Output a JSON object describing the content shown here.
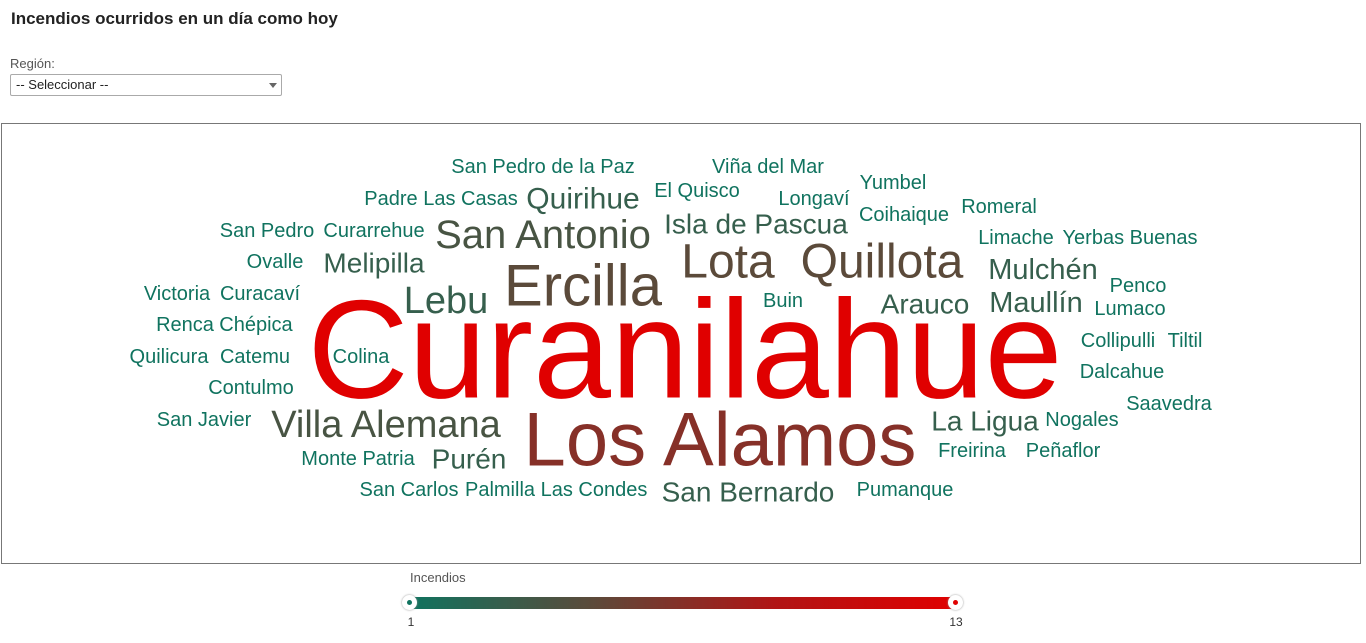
{
  "page": {
    "title": "Incendios ocurridos en un día como hoy",
    "region_label": "Región:",
    "region_select": "-- Seleccionar --"
  },
  "legend": {
    "title": "Incendios",
    "min_label": "1",
    "max_label": "13",
    "colors": [
      "#10735f",
      "#5b4a3a",
      "#b01515",
      "#e00000"
    ]
  },
  "chart_data": {
    "type": "wordcloud",
    "value_range": [
      1,
      13
    ],
    "words": [
      {
        "text": "Curanilahue",
        "value": 13
      },
      {
        "text": "Los Alamos",
        "value": 7
      },
      {
        "text": "Ercilla",
        "value": 5
      },
      {
        "text": "Lota",
        "value": 5
      },
      {
        "text": "Quillota",
        "value": 5
      },
      {
        "text": "San Antonio",
        "value": 4
      },
      {
        "text": "Villa Alemana",
        "value": 4
      },
      {
        "text": "Lebu",
        "value": 3
      },
      {
        "text": "San Bernardo",
        "value": 3
      },
      {
        "text": "Quirihue",
        "value": 3
      },
      {
        "text": "Isla de Pascua",
        "value": 3
      },
      {
        "text": "Melipilla",
        "value": 3
      },
      {
        "text": "Mulchén",
        "value": 3
      },
      {
        "text": "Maullín",
        "value": 3
      },
      {
        "text": "Arauco",
        "value": 3
      },
      {
        "text": "La Ligua",
        "value": 3
      },
      {
        "text": "Purén",
        "value": 3
      },
      {
        "text": "San Pedro de la Paz",
        "value": 1
      },
      {
        "text": "Viña del Mar",
        "value": 1
      },
      {
        "text": "Padre Las Casas",
        "value": 1
      },
      {
        "text": "El Quisco",
        "value": 1
      },
      {
        "text": "Longaví",
        "value": 1
      },
      {
        "text": "Yumbel",
        "value": 1
      },
      {
        "text": "Coihaique",
        "value": 1
      },
      {
        "text": "Romeral",
        "value": 1
      },
      {
        "text": "San Pedro",
        "value": 1
      },
      {
        "text": "Curarrehue",
        "value": 1
      },
      {
        "text": "Limache",
        "value": 1
      },
      {
        "text": "Yerbas Buenas",
        "value": 1
      },
      {
        "text": "Ovalle",
        "value": 1
      },
      {
        "text": "Penco",
        "value": 1
      },
      {
        "text": "Victoria",
        "value": 1
      },
      {
        "text": "Curacaví",
        "value": 1
      },
      {
        "text": "Buin",
        "value": 1
      },
      {
        "text": "Lumaco",
        "value": 1
      },
      {
        "text": "Renca",
        "value": 1
      },
      {
        "text": "Chépica",
        "value": 1
      },
      {
        "text": "Collipulli",
        "value": 1
      },
      {
        "text": "Tiltil",
        "value": 1
      },
      {
        "text": "Quilicura",
        "value": 1
      },
      {
        "text": "Catemu",
        "value": 1
      },
      {
        "text": "Colina",
        "value": 1
      },
      {
        "text": "Dalcahue",
        "value": 1
      },
      {
        "text": "Contulmo",
        "value": 1
      },
      {
        "text": "Saavedra",
        "value": 1
      },
      {
        "text": "San Javier",
        "value": 1
      },
      {
        "text": "Nogales",
        "value": 1
      },
      {
        "text": "Monte Patria",
        "value": 1
      },
      {
        "text": "Freirina",
        "value": 1
      },
      {
        "text": "Peñaflor",
        "value": 1
      },
      {
        "text": "San Carlos",
        "value": 1
      },
      {
        "text": "Palmilla",
        "value": 1
      },
      {
        "text": "Las Condes",
        "value": 1
      },
      {
        "text": "Pumanque",
        "value": 1
      }
    ]
  }
}
